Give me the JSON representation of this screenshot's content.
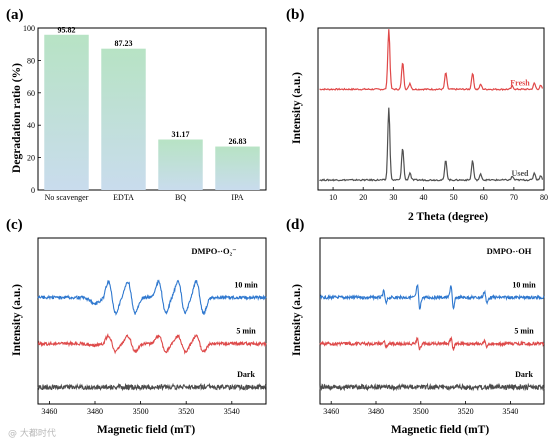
{
  "panels": {
    "a": {
      "label": "(a)"
    },
    "b": {
      "label": "(b)"
    },
    "c": {
      "label": "(c)"
    },
    "d": {
      "label": "(d)"
    }
  },
  "watermark": "@ 大都时代",
  "colors": {
    "bar_top": "#b7e3c4",
    "bar_bottom": "#c9dced",
    "fresh": "#e04848",
    "used": "#505050",
    "ten_min": "#2f78cf",
    "five_min": "#de4a4a",
    "dark": "#4d4d4d"
  },
  "chart_data": [
    {
      "panel": "a",
      "type": "bar",
      "title": "",
      "xlabel": "",
      "ylabel": "Degradation ratio (%)",
      "ylim": [
        0,
        100
      ],
      "yticks": [
        0,
        20,
        40,
        60,
        80,
        100
      ],
      "categories": [
        "No scavenger",
        "EDTA",
        "BQ",
        "IPA"
      ],
      "values": [
        95.82,
        87.23,
        31.17,
        26.83
      ],
      "data_labels": [
        "95.82",
        "87.23",
        "31.17",
        "26.83"
      ],
      "grid": false
    },
    {
      "panel": "b",
      "type": "line",
      "title": "",
      "xlabel": "2 Theta (degree)",
      "ylabel": "Intensity (a.u.)",
      "xlim": [
        5,
        80
      ],
      "xticks": [
        10,
        20,
        30,
        40,
        50,
        60,
        70,
        80
      ],
      "peaks": [
        {
          "x": 28.5,
          "rel": 1.0
        },
        {
          "x": 33.1,
          "rel": 0.45
        },
        {
          "x": 35.5,
          "rel": 0.1
        },
        {
          "x": 47.4,
          "rel": 0.28
        },
        {
          "x": 56.3,
          "rel": 0.27
        },
        {
          "x": 59.0,
          "rel": 0.08
        },
        {
          "x": 69.5,
          "rel": 0.05
        },
        {
          "x": 76.8,
          "rel": 0.1
        },
        {
          "x": 78.9,
          "rel": 0.06
        }
      ],
      "series": [
        {
          "name": "Fresh",
          "offset": 1.05,
          "scale": 0.5
        },
        {
          "name": "Used",
          "offset": 0.0,
          "scale": 0.6
        }
      ],
      "grid": false
    },
    {
      "panel": "c",
      "type": "line",
      "title": "",
      "annotation": "DMPO-·O₂⁻",
      "xlabel": "Magnetic field  (mT)",
      "ylabel": "Intensity (a.u.)",
      "xlim": [
        3455,
        3555
      ],
      "xticks": [
        3460,
        3480,
        3500,
        3520,
        3540
      ],
      "lines": [
        3487.5,
        3496.0,
        3509.5,
        3518.0,
        3526.0
      ],
      "series": [
        {
          "name": "10 min",
          "offset": 2.0,
          "amp": 1.0
        },
        {
          "name": "5 min",
          "offset": 1.0,
          "amp": 0.5
        },
        {
          "name": "Dark",
          "offset": 0.15,
          "amp": 0.0
        }
      ],
      "grid": false
    },
    {
      "panel": "d",
      "type": "line",
      "title": "",
      "annotation": "DMPO-·OH",
      "xlabel": "Magnetic field  (mT)",
      "ylabel": "Intensity (a.u.)",
      "xlim": [
        3455,
        3555
      ],
      "xticks": [
        3460,
        3480,
        3500,
        3520,
        3540
      ],
      "lines": [
        3484.0,
        3499.0,
        3514.0,
        3529.0
      ],
      "line_rel": [
        1,
        2,
        2,
        1
      ],
      "series": [
        {
          "name": "10 min",
          "offset": 2.0,
          "amp": 1.0
        },
        {
          "name": "5 min",
          "offset": 1.0,
          "amp": 0.45
        },
        {
          "name": "Dark",
          "offset": 0.15,
          "amp": 0.0
        }
      ],
      "grid": false
    }
  ]
}
